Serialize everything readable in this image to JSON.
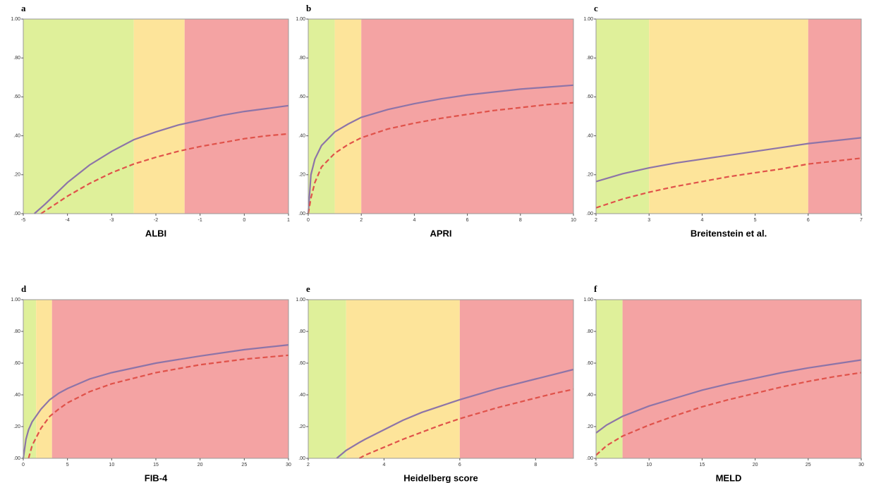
{
  "chart_data": [
    {
      "type": "line",
      "panel": "a",
      "x_label": "ALBI",
      "xlim": [
        -5,
        1
      ],
      "xticks": [
        -5,
        -4,
        -3,
        -2,
        -1,
        0,
        1
      ],
      "ylim": [
        0,
        1
      ],
      "yticks": [
        {
          "value": 0,
          "label": ".00"
        },
        {
          "value": 0.2,
          "label": ".20"
        },
        {
          "value": 0.4,
          "label": ".40"
        },
        {
          "value": 0.6,
          "label": ".60"
        },
        {
          "value": 0.8,
          "label": ".80"
        },
        {
          "value": 1,
          "label": "1.00"
        }
      ],
      "zones": [
        {
          "from": -5,
          "to": -2.5,
          "color": "#dff09a"
        },
        {
          "from": -2.5,
          "to": -1.35,
          "color": "#fde49a"
        },
        {
          "from": -1.35,
          "to": 1,
          "color": "#f4a3a3"
        }
      ],
      "x": [
        -4.75,
        -4.6,
        -4.5,
        -4,
        -3.5,
        -3,
        -2.5,
        -2,
        -1.5,
        -1,
        -0.5,
        0,
        0.5,
        1
      ],
      "series": [
        {
          "color": "#8d74a8",
          "dash": false,
          "values": [
            0,
            0.03,
            0.05,
            0.16,
            0.25,
            0.32,
            0.38,
            0.42,
            0.455,
            0.48,
            0.505,
            0.525,
            0.54,
            0.555
          ]
        },
        {
          "color": "#e0524a",
          "dash": true,
          "values": [
            null,
            0,
            0.015,
            0.09,
            0.155,
            0.21,
            0.255,
            0.29,
            0.32,
            0.345,
            0.365,
            0.385,
            0.4,
            0.41
          ]
        }
      ]
    },
    {
      "type": "line",
      "panel": "b",
      "x_label": "APRI",
      "xlim": [
        0,
        10
      ],
      "xticks": [
        0,
        2,
        4,
        6,
        8,
        10
      ],
      "ylim": [
        0,
        1
      ],
      "yticks": [
        {
          "value": 0,
          "label": ".00"
        },
        {
          "value": 0.2,
          "label": ".20"
        },
        {
          "value": 0.4,
          "label": ".40"
        },
        {
          "value": 0.6,
          "label": ".60"
        },
        {
          "value": 0.8,
          "label": ".80"
        },
        {
          "value": 1,
          "label": "1.00"
        }
      ],
      "zones": [
        {
          "from": 0,
          "to": 1,
          "color": "#dff09a"
        },
        {
          "from": 1,
          "to": 2,
          "color": "#fde49a"
        },
        {
          "from": 2,
          "to": 10,
          "color": "#f4a3a3"
        }
      ],
      "x": [
        0,
        0.1,
        0.25,
        0.5,
        1,
        1.5,
        2,
        3,
        4,
        5,
        6,
        7,
        8,
        9,
        10
      ],
      "series": [
        {
          "color": "#8d74a8",
          "dash": false,
          "values": [
            0,
            0.2,
            0.28,
            0.35,
            0.42,
            0.46,
            0.495,
            0.535,
            0.565,
            0.59,
            0.61,
            0.625,
            0.64,
            0.65,
            0.66
          ]
        },
        {
          "color": "#e0524a",
          "dash": true,
          "values": [
            0,
            0.08,
            0.16,
            0.24,
            0.31,
            0.355,
            0.39,
            0.435,
            0.465,
            0.49,
            0.51,
            0.53,
            0.545,
            0.56,
            0.57
          ]
        }
      ]
    },
    {
      "type": "line",
      "panel": "c",
      "x_label": "Breitenstein et al.",
      "xlim": [
        2,
        7
      ],
      "xticks": [
        2,
        3,
        4,
        5,
        6,
        7
      ],
      "ylim": [
        0,
        1
      ],
      "yticks": [
        {
          "value": 0,
          "label": ".00"
        },
        {
          "value": 0.2,
          "label": ".20"
        },
        {
          "value": 0.4,
          "label": ".40"
        },
        {
          "value": 0.6,
          "label": ".60"
        },
        {
          "value": 0.8,
          "label": ".80"
        },
        {
          "value": 1,
          "label": "1.00"
        }
      ],
      "zones": [
        {
          "from": 2,
          "to": 3,
          "color": "#dff09a"
        },
        {
          "from": 3,
          "to": 6,
          "color": "#fde49a"
        },
        {
          "from": 6,
          "to": 7,
          "color": "#f4a3a3"
        }
      ],
      "x": [
        2,
        2.5,
        3,
        3.5,
        4,
        4.5,
        5,
        5.5,
        6,
        6.5,
        7
      ],
      "series": [
        {
          "color": "#8d74a8",
          "dash": false,
          "values": [
            0.165,
            0.205,
            0.235,
            0.26,
            0.28,
            0.3,
            0.32,
            0.34,
            0.36,
            0.375,
            0.39
          ]
        },
        {
          "color": "#e0524a",
          "dash": true,
          "values": [
            0.03,
            0.075,
            0.11,
            0.14,
            0.165,
            0.19,
            0.21,
            0.23,
            0.255,
            0.27,
            0.285
          ]
        }
      ]
    },
    {
      "type": "line",
      "panel": "d",
      "x_label": "FIB-4",
      "xlim": [
        0,
        30
      ],
      "xticks": [
        0,
        5,
        10,
        15,
        20,
        25,
        30
      ],
      "ylim": [
        0,
        1
      ],
      "yticks": [
        {
          "value": 0,
          "label": ".00"
        },
        {
          "value": 0.2,
          "label": ".20"
        },
        {
          "value": 0.4,
          "label": ".40"
        },
        {
          "value": 0.6,
          "label": ".60"
        },
        {
          "value": 0.8,
          "label": ".80"
        },
        {
          "value": 1,
          "label": "1.00"
        }
      ],
      "zones": [
        {
          "from": 0,
          "to": 1.45,
          "color": "#dff09a"
        },
        {
          "from": 1.45,
          "to": 3.25,
          "color": "#fde49a"
        },
        {
          "from": 3.25,
          "to": 30,
          "color": "#f4a3a3"
        }
      ],
      "x": [
        0,
        0.3,
        0.6,
        1,
        2,
        3,
        4,
        5,
        7.5,
        10,
        15,
        20,
        25,
        30
      ],
      "series": [
        {
          "color": "#8d74a8",
          "dash": false,
          "values": [
            0,
            0.12,
            0.18,
            0.23,
            0.31,
            0.37,
            0.41,
            0.44,
            0.5,
            0.54,
            0.6,
            0.645,
            0.685,
            0.715
          ]
        },
        {
          "color": "#e0524a",
          "dash": true,
          "values": [
            null,
            null,
            0,
            0.08,
            0.19,
            0.265,
            0.31,
            0.35,
            0.42,
            0.47,
            0.54,
            0.59,
            0.625,
            0.65
          ]
        }
      ]
    },
    {
      "type": "line",
      "panel": "e",
      "x_label": "Heidelberg score",
      "xlim": [
        2,
        9
      ],
      "xticks": [
        2,
        4,
        6,
        8
      ],
      "ylim": [
        0,
        1
      ],
      "yticks": [
        {
          "value": 0,
          "label": ".00"
        },
        {
          "value": 0.2,
          "label": ".20"
        },
        {
          "value": 0.4,
          "label": ".40"
        },
        {
          "value": 0.6,
          "label": ".60"
        },
        {
          "value": 0.8,
          "label": ".80"
        },
        {
          "value": 1,
          "label": "1.00"
        }
      ],
      "zones": [
        {
          "from": 2,
          "to": 3,
          "color": "#dff09a"
        },
        {
          "from": 3,
          "to": 6,
          "color": "#fde49a"
        },
        {
          "from": 6,
          "to": 9,
          "color": "#f4a3a3"
        }
      ],
      "x": [
        2.75,
        3,
        3.35,
        3.5,
        4,
        4.5,
        5,
        5.5,
        6,
        6.5,
        7,
        7.5,
        8,
        8.5,
        9
      ],
      "series": [
        {
          "color": "#8d74a8",
          "dash": false,
          "values": [
            0,
            0.05,
            0.1,
            0.12,
            0.18,
            0.24,
            0.29,
            0.33,
            0.37,
            0.405,
            0.44,
            0.47,
            0.5,
            0.53,
            0.56
          ]
        },
        {
          "color": "#e0524a",
          "dash": true,
          "values": [
            null,
            null,
            0,
            0.02,
            0.07,
            0.12,
            0.165,
            0.21,
            0.25,
            0.285,
            0.32,
            0.35,
            0.38,
            0.41,
            0.435
          ]
        }
      ]
    },
    {
      "type": "line",
      "panel": "f",
      "x_label": "MELD",
      "xlim": [
        5,
        30
      ],
      "xticks": [
        5,
        10,
        15,
        20,
        25,
        30
      ],
      "ylim": [
        0,
        1
      ],
      "yticks": [
        {
          "value": 0,
          "label": ".00"
        },
        {
          "value": 0.2,
          "label": ".20"
        },
        {
          "value": 0.4,
          "label": ".40"
        },
        {
          "value": 0.6,
          "label": ".60"
        },
        {
          "value": 0.8,
          "label": ".80"
        },
        {
          "value": 1,
          "label": "1.00"
        }
      ],
      "zones": [
        {
          "from": 5,
          "to": 7.5,
          "color": "#dff09a"
        },
        {
          "from": 7.5,
          "to": 30,
          "color": "#f4a3a3"
        }
      ],
      "x": [
        5,
        6,
        7.5,
        10,
        12.5,
        15,
        17.5,
        20,
        22.5,
        25,
        27.5,
        30
      ],
      "series": [
        {
          "color": "#8d74a8",
          "dash": false,
          "values": [
            0.16,
            0.21,
            0.265,
            0.33,
            0.38,
            0.43,
            0.47,
            0.505,
            0.54,
            0.57,
            0.595,
            0.62
          ]
        },
        {
          "color": "#e0524a",
          "dash": true,
          "values": [
            0.02,
            0.08,
            0.14,
            0.21,
            0.27,
            0.325,
            0.37,
            0.41,
            0.45,
            0.485,
            0.515,
            0.54
          ]
        }
      ]
    }
  ]
}
